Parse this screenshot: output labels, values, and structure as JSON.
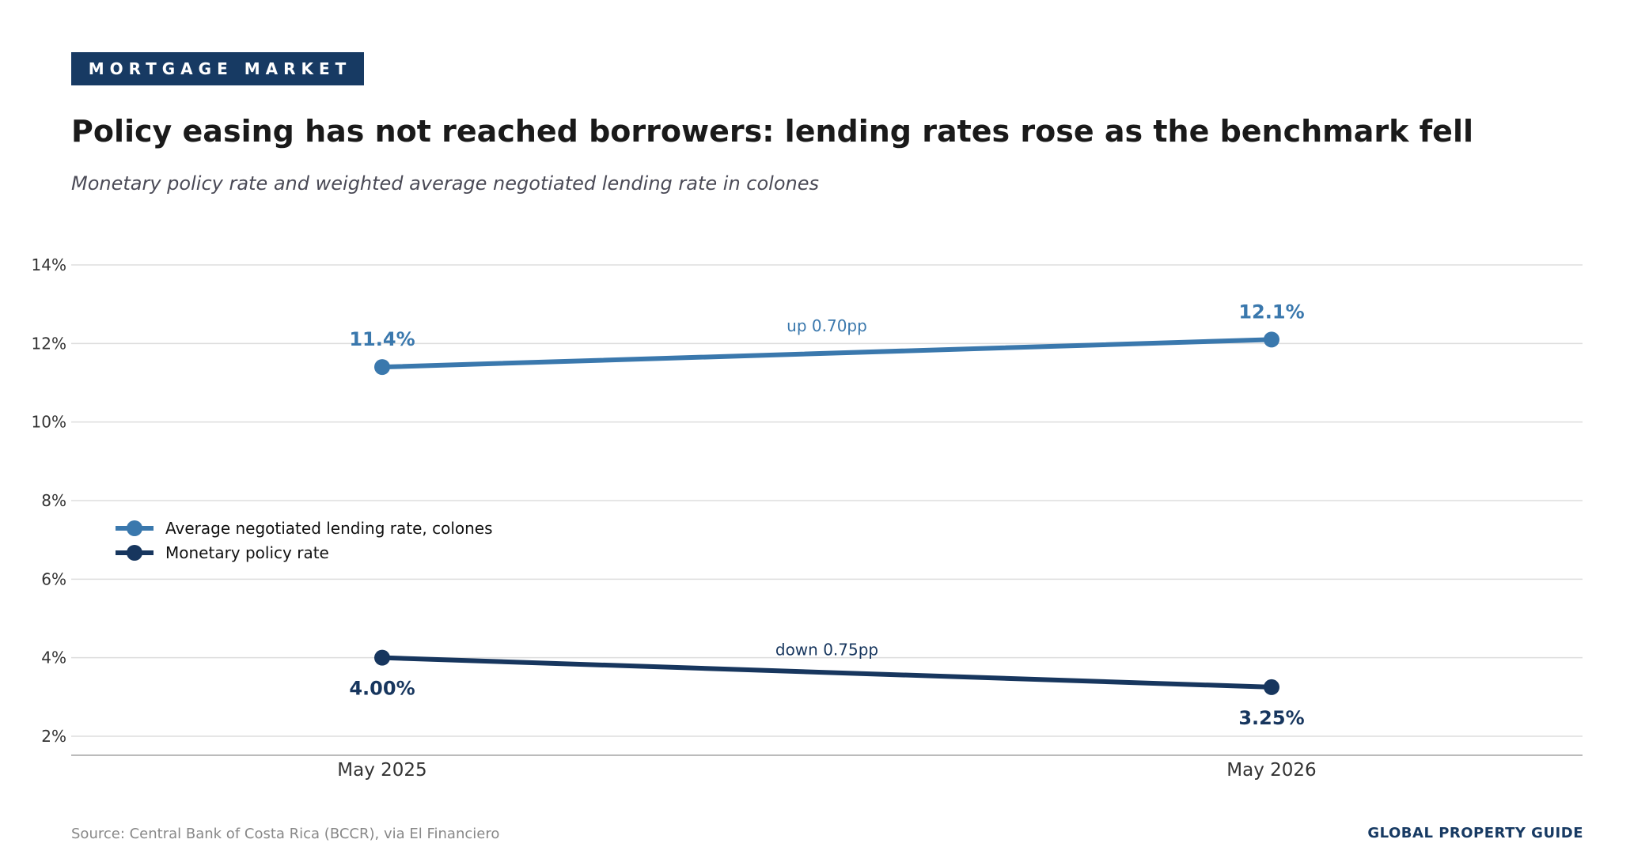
{
  "header": {
    "tag": "MORTGAGE MARKET",
    "title": "Policy easing has not reached borrowers: lending rates rose as the benchmark fell",
    "subtitle": "Monetary policy rate and weighted average negotiated lending rate in colones"
  },
  "footer": {
    "source": "Source: Central Bank of Costa Rica (BCCR), via El Financiero",
    "brand": "GLOBAL PROPERTY GUIDE"
  },
  "chart_data": {
    "type": "line",
    "categories": [
      "May 2025",
      "May 2026"
    ],
    "y_ticks": [
      "2%",
      "4%",
      "6%",
      "8%",
      "10%",
      "12%",
      "14%"
    ],
    "ylim": [
      1.5,
      14.5
    ],
    "grid": true,
    "legend_position": "left-middle",
    "series": [
      {
        "name": "Average negotiated lending rate, colones",
        "values": [
          11.4,
          12.1
        ],
        "labels": [
          "11.4%",
          "12.1%"
        ],
        "change_label": "up 0.70pp",
        "color": "#3a78ad"
      },
      {
        "name": "Monetary policy rate",
        "values": [
          4.0,
          3.25
        ],
        "labels": [
          "4.00%",
          "3.25%"
        ],
        "change_label": "down 0.75pp",
        "color": "#17365e"
      }
    ]
  }
}
